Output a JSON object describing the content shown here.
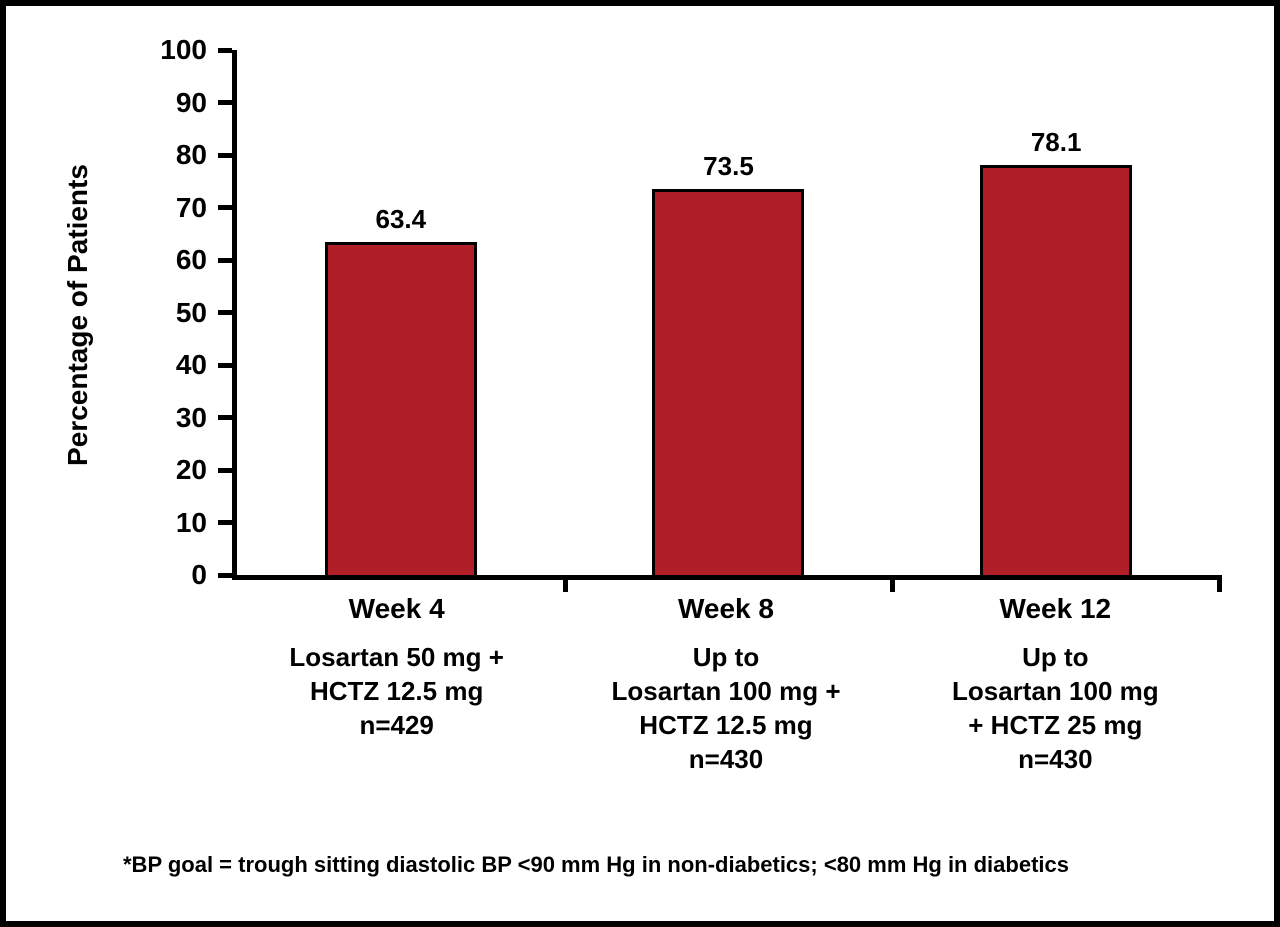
{
  "chart_data": {
    "type": "bar",
    "title": "",
    "xlabel": "",
    "ylabel": "Percentage of Patients",
    "ylim": [
      0,
      100
    ],
    "yticks": [
      0,
      10,
      20,
      30,
      40,
      50,
      60,
      70,
      80,
      90,
      100
    ],
    "grid": false,
    "legend": false,
    "bar_color": "#B01E28",
    "bar_border_color": "#000000",
    "categories": [
      "Week 4",
      "Week 8",
      "Week 12"
    ],
    "values": [
      63.4,
      73.5,
      78.1
    ],
    "value_labels": [
      "63.4",
      "73.5",
      "78.1"
    ],
    "x_sublabels": [
      {
        "week": "Week 4",
        "lines": [
          "Losartan 50 mg +",
          "HCTZ 12.5 mg"
        ],
        "n": "n=429"
      },
      {
        "week": "Week 8",
        "lines": [
          "Up to",
          "Losartan 100 mg +",
          "HCTZ 12.5 mg"
        ],
        "n": "n=430"
      },
      {
        "week": "Week 12",
        "lines": [
          "Up to",
          "Losartan 100 mg",
          "+ HCTZ 25 mg"
        ],
        "n": "n=430"
      }
    ],
    "footnote": "*BP goal = trough sitting diastolic BP <90 mm Hg in non-diabetics; <80 mm Hg in diabetics"
  }
}
